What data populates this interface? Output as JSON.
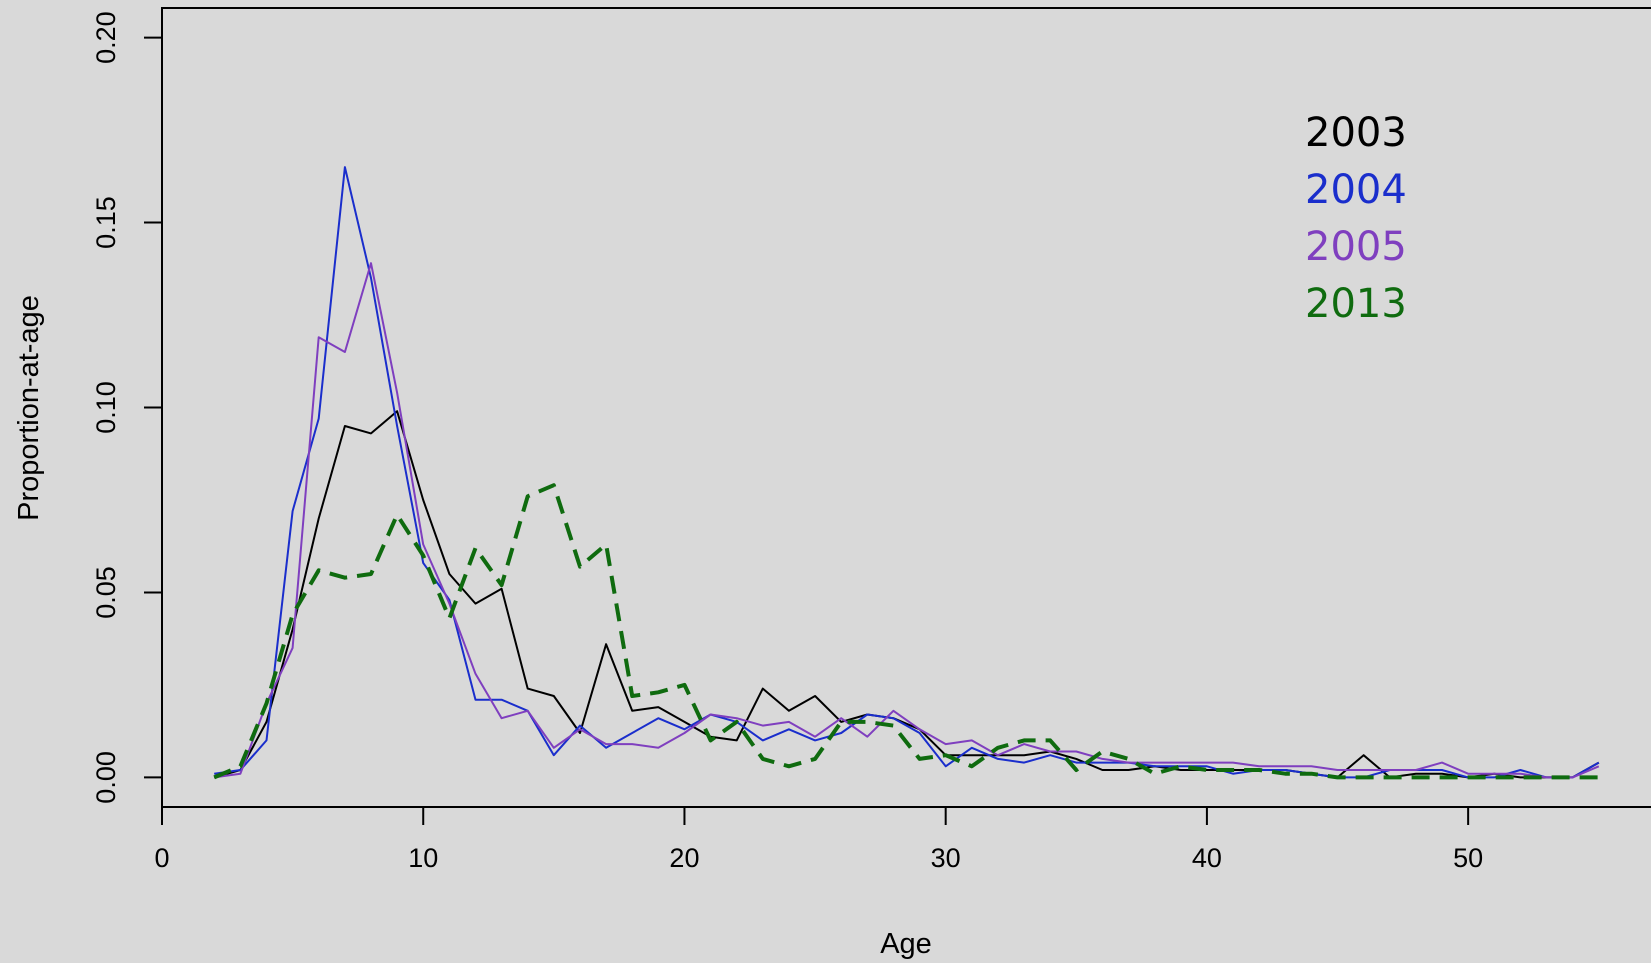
{
  "chart_data": {
    "type": "line",
    "title": "",
    "xlabel": "Age",
    "ylabel": "Proportion-at-age",
    "xlim": [
      0,
      57
    ],
    "ylim": [
      -0.008,
      0.208
    ],
    "x_ticks": [
      0,
      10,
      20,
      30,
      40,
      50
    ],
    "x_tick_labels": [
      "0",
      "10",
      "20",
      "30",
      "40",
      "50"
    ],
    "y_ticks": [
      0.0,
      0.05,
      0.1,
      0.15,
      0.2
    ],
    "y_tick_labels": [
      "0.00",
      "0.05",
      "0.10",
      "0.15",
      "0.20"
    ],
    "grid": false,
    "legend_position": "top-right",
    "x": [
      2,
      3,
      4,
      5,
      6,
      7,
      8,
      9,
      10,
      11,
      12,
      13,
      14,
      15,
      16,
      17,
      18,
      19,
      20,
      21,
      22,
      23,
      24,
      25,
      26,
      27,
      28,
      29,
      30,
      31,
      32,
      33,
      34,
      35,
      36,
      37,
      38,
      39,
      40,
      41,
      42,
      43,
      44,
      45,
      46,
      47,
      48,
      49,
      50,
      51,
      52,
      53,
      54,
      55
    ],
    "series": [
      {
        "name": "2003",
        "color": "#000000",
        "dash": "solid",
        "values": [
          0.0,
          0.002,
          0.015,
          0.04,
          0.07,
          0.095,
          0.093,
          0.099,
          0.075,
          0.055,
          0.047,
          0.051,
          0.024,
          0.022,
          0.012,
          0.036,
          0.018,
          0.019,
          0.015,
          0.011,
          0.01,
          0.024,
          0.018,
          0.022,
          0.015,
          0.017,
          0.016,
          0.013,
          0.006,
          0.006,
          0.006,
          0.006,
          0.007,
          0.005,
          0.002,
          0.002,
          0.003,
          0.002,
          0.002,
          0.002,
          0.002,
          0.002,
          0.001,
          0.0,
          0.006,
          0.0,
          0.001,
          0.001,
          0.0,
          0.001,
          0.0,
          0.0,
          0.0,
          0.004
        ]
      },
      {
        "name": "2004",
        "color": "#1a2ecc",
        "dash": "solid",
        "values": [
          0.001,
          0.002,
          0.01,
          0.072,
          0.097,
          0.165,
          0.135,
          0.095,
          0.058,
          0.048,
          0.021,
          0.021,
          0.018,
          0.006,
          0.014,
          0.008,
          0.012,
          0.016,
          0.013,
          0.017,
          0.015,
          0.01,
          0.013,
          0.01,
          0.012,
          0.017,
          0.016,
          0.012,
          0.003,
          0.008,
          0.005,
          0.004,
          0.006,
          0.004,
          0.004,
          0.004,
          0.003,
          0.003,
          0.003,
          0.001,
          0.002,
          0.002,
          0.001,
          0.0,
          0.0,
          0.002,
          0.002,
          0.002,
          0.0,
          0.0,
          0.002,
          0.0,
          0.0,
          0.004
        ]
      },
      {
        "name": "2005",
        "color": "#7f3fbf",
        "dash": "solid",
        "values": [
          0.0,
          0.001,
          0.02,
          0.035,
          0.119,
          0.115,
          0.139,
          0.104,
          0.063,
          0.047,
          0.028,
          0.016,
          0.018,
          0.008,
          0.013,
          0.009,
          0.009,
          0.008,
          0.012,
          0.017,
          0.016,
          0.014,
          0.015,
          0.011,
          0.016,
          0.011,
          0.018,
          0.013,
          0.009,
          0.01,
          0.006,
          0.009,
          0.007,
          0.007,
          0.005,
          0.004,
          0.004,
          0.004,
          0.004,
          0.004,
          0.003,
          0.003,
          0.003,
          0.002,
          0.002,
          0.002,
          0.002,
          0.004,
          0.001,
          0.001,
          0.001,
          0.0,
          0.0,
          0.003
        ]
      },
      {
        "name": "2013",
        "color": "#0f6b0f",
        "dash": "dashed",
        "values": [
          0.0,
          0.003,
          0.02,
          0.044,
          0.056,
          0.054,
          0.055,
          0.071,
          0.06,
          0.043,
          0.062,
          0.052,
          0.076,
          0.079,
          0.057,
          0.063,
          0.022,
          0.023,
          0.025,
          0.01,
          0.015,
          0.005,
          0.003,
          0.005,
          0.015,
          0.015,
          0.014,
          0.005,
          0.006,
          0.003,
          0.008,
          0.01,
          0.01,
          0.002,
          0.007,
          0.005,
          0.001,
          0.003,
          0.002,
          0.002,
          0.002,
          0.001,
          0.001,
          0.0,
          0.0,
          0.0,
          0.0,
          0.0,
          0.0,
          0.0,
          0.0,
          0.0,
          0.0,
          0.0
        ]
      }
    ]
  }
}
